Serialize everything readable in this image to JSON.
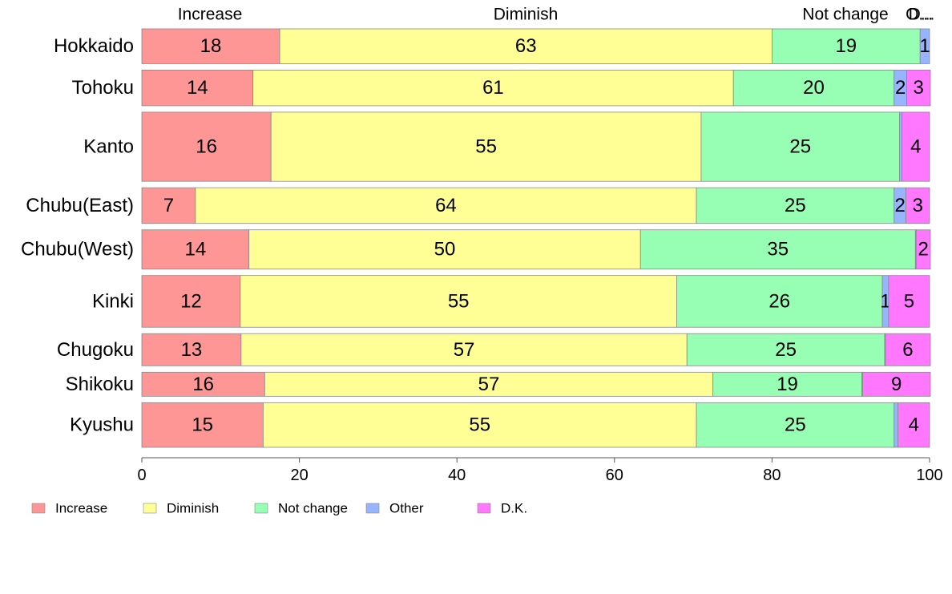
{
  "chart_data": {
    "type": "bar",
    "orientation": "horizontal",
    "stacked": true,
    "variable_width": true,
    "categories": [
      "Hokkaido",
      "Tohoku",
      "Kanto",
      "Chubu(East)",
      "Chubu(West)",
      "Kinki",
      "Chugoku",
      "Shikoku",
      "Kyushu"
    ],
    "series": [
      {
        "name": "Increase",
        "color": "#ff9696",
        "values": [
          17.5,
          14.1,
          16.4,
          6.8,
          13.6,
          12.5,
          12.6,
          15.6,
          15.4
        ],
        "labels": [
          "18",
          "14",
          "16",
          "7",
          "14",
          "12",
          "13",
          "16",
          "15"
        ]
      },
      {
        "name": "Diminish",
        "color": "#ffff96",
        "values": [
          62.5,
          61.0,
          54.6,
          63.6,
          49.7,
          55.4,
          56.6,
          56.9,
          55.0
        ],
        "labels": [
          "63",
          "61",
          "55",
          "64",
          "50",
          "55",
          "57",
          "57",
          "55"
        ]
      },
      {
        "name": "Not change",
        "color": "#96ffb4",
        "values": [
          18.8,
          20.4,
          25.2,
          25.1,
          34.9,
          26.1,
          25.1,
          18.9,
          25.1
        ],
        "labels": [
          "19",
          "20",
          "25",
          "25",
          "35",
          "26",
          "25",
          "19",
          "25"
        ]
      },
      {
        "name": "Other",
        "color": "#96b4ff",
        "values": [
          1.2,
          1.6,
          0.3,
          1.5,
          0.1,
          0.8,
          0.1,
          0.1,
          0.5
        ],
        "labels": [
          "1",
          "2",
          "",
          "2",
          "",
          "1",
          "",
          "",
          ""
        ]
      },
      {
        "name": "D.K.",
        "color": "#ff78ff",
        "values": [
          0.0,
          3.0,
          3.5,
          3.0,
          1.8,
          5.2,
          5.7,
          8.6,
          4.0
        ],
        "labels": [
          "",
          "3",
          "4",
          "3",
          "2",
          "5",
          "6",
          "9",
          "4"
        ]
      }
    ],
    "bar_weights": [
      0.78,
      0.8,
      1.55,
      0.8,
      0.88,
      1.16,
      0.72,
      0.54,
      1.0
    ],
    "top_labels": [
      "Increase",
      "Diminish",
      "Not change",
      "O...",
      "D..."
    ],
    "x_ticks": [
      "0",
      "20",
      "40",
      "60",
      "80",
      "100"
    ],
    "xlim": [
      0,
      100
    ],
    "xlabel": "",
    "ylabel": "",
    "grid": false,
    "legend_position": "bottom-left"
  }
}
